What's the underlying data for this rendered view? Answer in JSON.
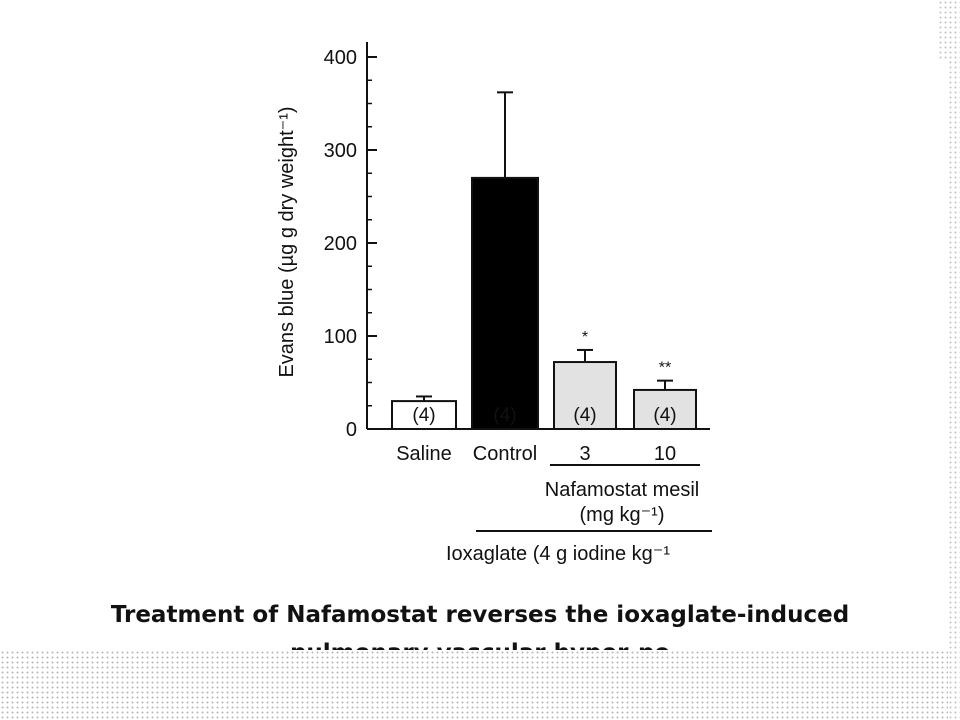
{
  "chart_data": {
    "type": "bar",
    "ylabel": "Evans blue (µg g dry weight⁻¹)",
    "ylim": [
      0,
      400
    ],
    "yticks": [
      0,
      100,
      200,
      300,
      400
    ],
    "categories": [
      "Saline",
      "Control",
      "3",
      "10"
    ],
    "values": [
      30,
      270,
      72,
      42
    ],
    "errors": [
      5,
      92,
      13,
      10
    ],
    "n_labels": [
      "(4)",
      "(4)",
      "(4)",
      "(4)"
    ],
    "significance": [
      "",
      "",
      "*",
      "**"
    ],
    "bar_fills": [
      "#ffffff",
      "#000000",
      "#e2e2e2",
      "#e2e2e2"
    ],
    "group_labels": {
      "nafamostat_line1": "Nafamostat mesil",
      "nafamostat_line2": "(mg kg⁻¹)",
      "ioxaglate": "Ioxaglate (4 g iodine kg⁻¹"
    }
  },
  "caption": {
    "line1": "Treatment of Nafamostat reverses the ioxaglate-induced",
    "line2": "pulmonary vascular hyper-pe"
  }
}
